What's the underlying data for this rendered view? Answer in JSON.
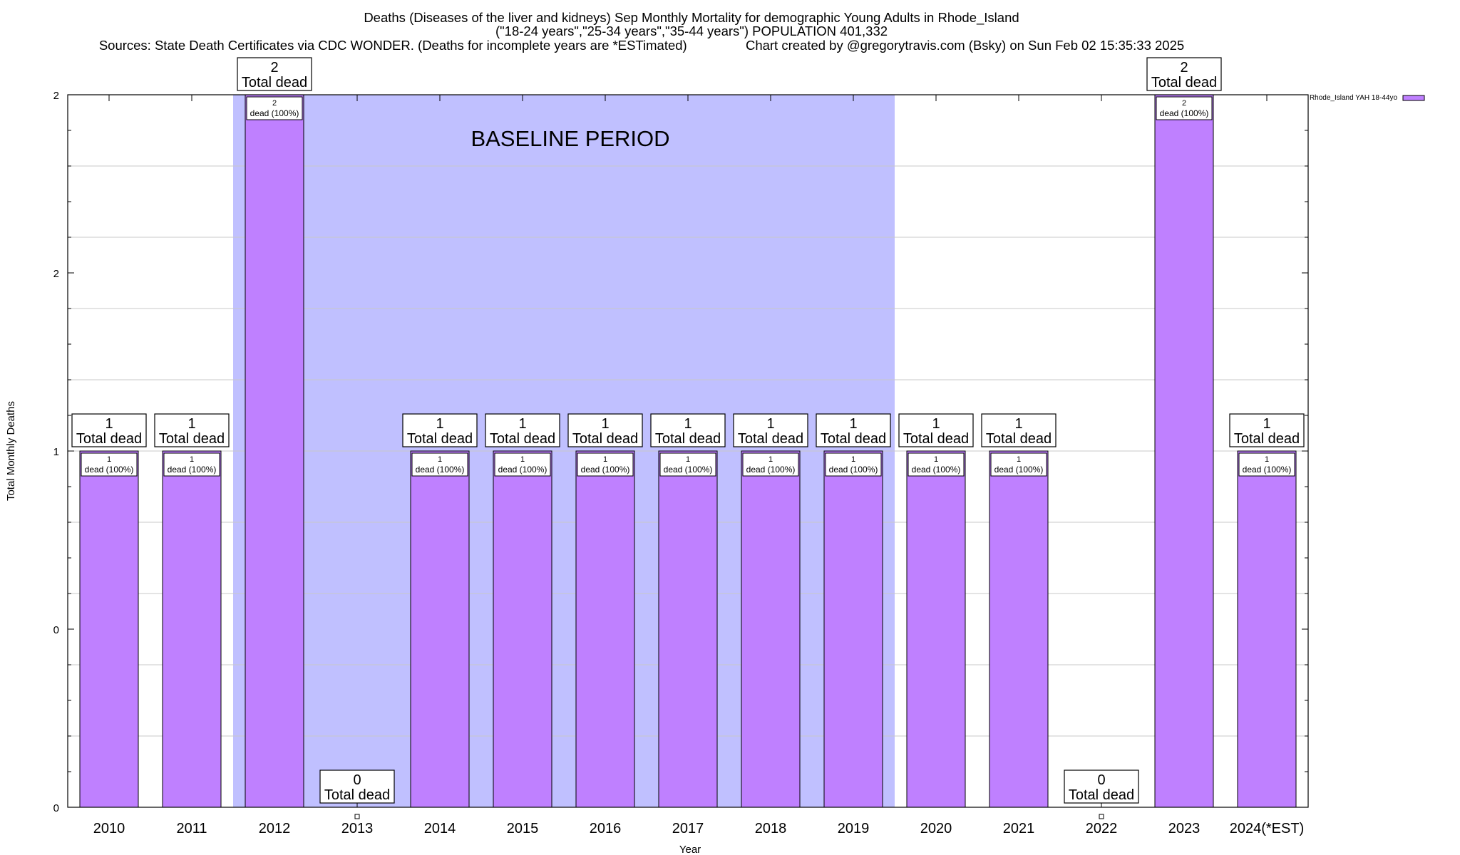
{
  "title": {
    "line1": "Deaths (Diseases of the liver and kidneys) Sep Monthly Mortality for demographic Young Adults in Rhode_Island",
    "line2": "(\"18-24 years\",\"25-34 years\",\"35-44 years\") POPULATION 401,332",
    "line3": "Sources: State Death Certificates via CDC WONDER. (Deaths for incomplete years are *ESTimated)                Chart created by @gregorytravis.com (Bsky) on Sun Feb 02 15:35:33 2025"
  },
  "chart_data": {
    "type": "bar",
    "xlabel": "Year",
    "ylabel": "Total Monthly Deaths",
    "categories": [
      "2010",
      "2011",
      "2012",
      "2013",
      "2014",
      "2015",
      "2016",
      "2017",
      "2018",
      "2019",
      "2020",
      "2021",
      "2022",
      "2023",
      "2024(*EST)"
    ],
    "series": [
      {
        "name": "Rhode_Island YAH 18-44yo",
        "color": "#bf80ff",
        "values": [
          1,
          1,
          2,
          0,
          1,
          1,
          1,
          1,
          1,
          1,
          1,
          1,
          0,
          2,
          1
        ]
      }
    ],
    "ylim": [
      0,
      2
    ],
    "ytick_labels": [
      "0",
      "0",
      "1",
      "2",
      "2"
    ],
    "grid": true,
    "legend_position": "top-right",
    "baseline_period": {
      "label": "BASELINE PERIOD",
      "from": "2012",
      "to": "2019",
      "color": "#c0c0ff"
    },
    "total_label_suffix": "Total dead",
    "bar_label_suffix": "dead (100%)"
  }
}
